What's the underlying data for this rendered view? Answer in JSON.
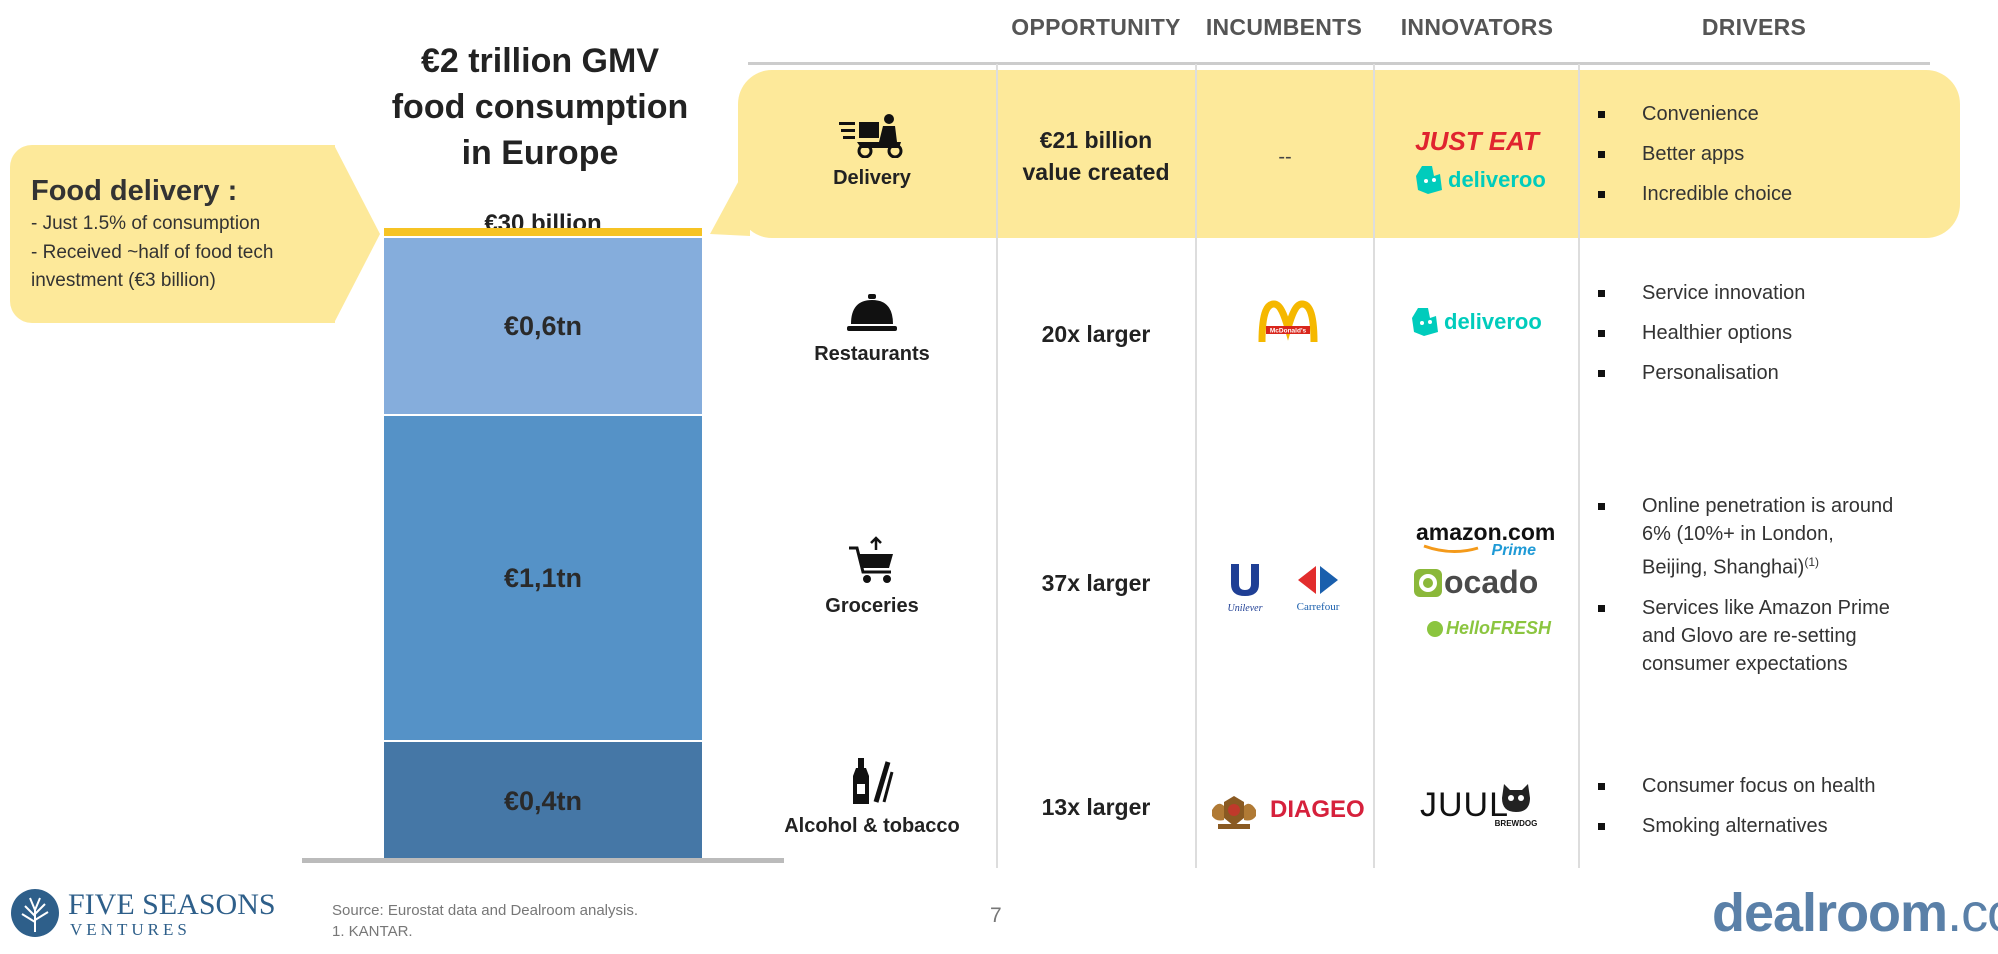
{
  "columns": {
    "opportunity": "OPPORTUNITY",
    "incumbents": "INCUMBENTS",
    "innovators": "INNOVATORS",
    "drivers": "DRIVERS"
  },
  "stack": {
    "title_lines": [
      "€2 trillion GMV",
      "food consumption",
      "in Europe"
    ],
    "top_label": "€30 billion",
    "segments": [
      {
        "label": "€0,6tn",
        "color": "#85addc"
      },
      {
        "label": "€1,1tn",
        "color": "#5592c7"
      },
      {
        "label": "€0,4tn",
        "color": "#4577a6"
      }
    ],
    "top_color": "#f6c324"
  },
  "callout": {
    "title": "Food delivery :",
    "lines": [
      "- Just 1.5% of consumption",
      "- Received ~half of food tech",
      "investment (€3 billion)"
    ]
  },
  "rows": [
    {
      "category": "Delivery",
      "icon": "delivery-scooter-icon",
      "opportunity": [
        "€21 billion",
        "value created"
      ],
      "incumbents_text": "--",
      "drivers": [
        "Convenience",
        "Better apps",
        "Incredible choice"
      ]
    },
    {
      "category": "Restaurants",
      "icon": "service-bell-icon",
      "opportunity": [
        "20x larger"
      ],
      "drivers": [
        "Service innovation",
        "Healthier options",
        "Personalisation"
      ]
    },
    {
      "category": "Groceries",
      "icon": "shopping-cart-icon",
      "opportunity": [
        "37x larger"
      ],
      "drivers": [
        "Online penetration is around 6% (10%+ in London, Beijing, Shanghai)",
        "Services like Amazon Prime and Glovo are re-setting consumer expectations"
      ],
      "driver_footnote": "(1)"
    },
    {
      "category": "Alcohol & tobacco",
      "icon": "bottle-cigarette-icon",
      "opportunity": [
        "13x larger"
      ],
      "drivers": [
        "Consumer focus on health",
        "Smoking alternatives"
      ]
    }
  ],
  "logos": {
    "just_eat": "JUST EAT",
    "deliveroo": "deliveroo",
    "mcdonalds": "McDonald's",
    "amazon": "amazon.com",
    "amazon_prime": "Prime",
    "ocado": "ocado",
    "hellofresh": "HelloFRESH",
    "unilever": "Unilever",
    "carrefour": "Carrefour",
    "diageo": "DIAGEO",
    "juul": "JUUL",
    "brewdog": "BREWDOG"
  },
  "footer": {
    "company_name": "FIVE SEASONS",
    "company_sub": "VENTURES",
    "source": "Source: Eurostat data and Dealroom analysis.",
    "note": "1. KANTAR.",
    "page": "7",
    "dealroom_main": "dealroom",
    "dealroom_suffix": ".co"
  }
}
